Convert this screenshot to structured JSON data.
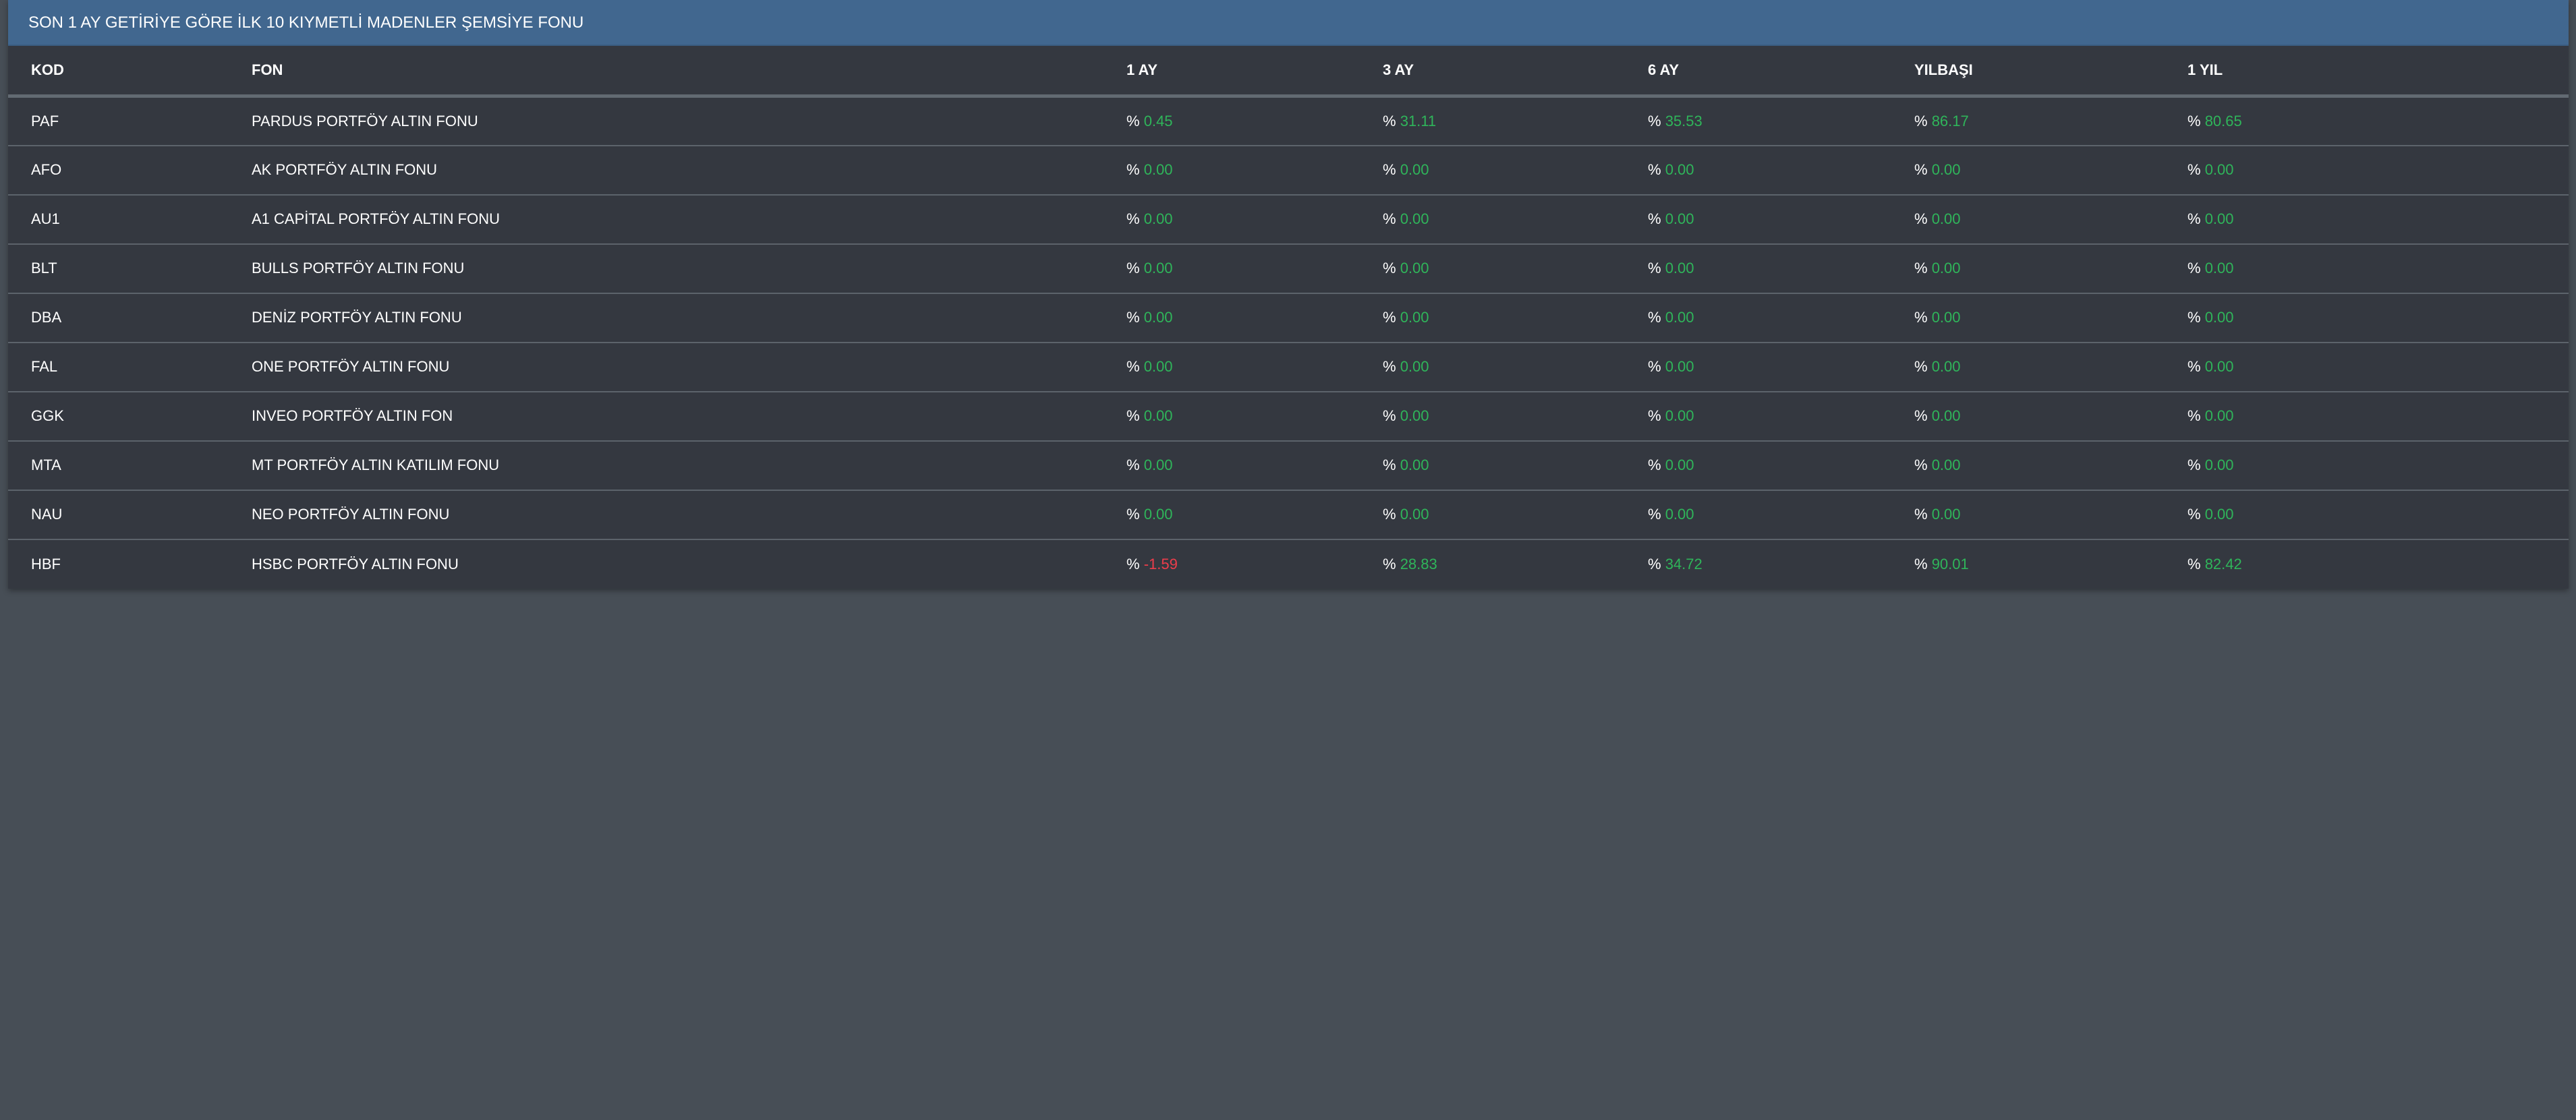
{
  "title": "SON 1 AY GETİRİYE GÖRE İLK 10 KIYMETLİ MADENLER ŞEMSİYE FONU",
  "columns": [
    "KOD",
    "FON",
    "1 AY",
    "3 AY",
    "6 AY",
    "YILBAŞI",
    "1 YIL"
  ],
  "percent_symbol": "%",
  "colors": {
    "positive": "#2fb55a",
    "negative": "#ee3d4b",
    "header": "#41678f",
    "panel": "#343840",
    "page": "#474e56"
  },
  "rows": [
    {
      "kod": "PAF",
      "fon": "PARDUS PORTFÖY ALTIN FONU",
      "values": [
        "0.45",
        "31.11",
        "35.53",
        "86.17",
        "80.65"
      ]
    },
    {
      "kod": "AFO",
      "fon": "AK PORTFÖY ALTIN FONU",
      "values": [
        "0.00",
        "0.00",
        "0.00",
        "0.00",
        "0.00"
      ]
    },
    {
      "kod": "AU1",
      "fon": "A1 CAPİTAL PORTFÖY ALTIN FONU",
      "values": [
        "0.00",
        "0.00",
        "0.00",
        "0.00",
        "0.00"
      ]
    },
    {
      "kod": "BLT",
      "fon": "BULLS PORTFÖY ALTIN FONU",
      "values": [
        "0.00",
        "0.00",
        "0.00",
        "0.00",
        "0.00"
      ]
    },
    {
      "kod": "DBA",
      "fon": "DENİZ PORTFÖY ALTIN FONU",
      "values": [
        "0.00",
        "0.00",
        "0.00",
        "0.00",
        "0.00"
      ]
    },
    {
      "kod": "FAL",
      "fon": "ONE PORTFÖY ALTIN FONU",
      "values": [
        "0.00",
        "0.00",
        "0.00",
        "0.00",
        "0.00"
      ]
    },
    {
      "kod": "GGK",
      "fon": "INVEO PORTFÖY ALTIN FON",
      "values": [
        "0.00",
        "0.00",
        "0.00",
        "0.00",
        "0.00"
      ]
    },
    {
      "kod": "MTA",
      "fon": "MT PORTFÖY ALTIN KATILIM FONU",
      "values": [
        "0.00",
        "0.00",
        "0.00",
        "0.00",
        "0.00"
      ]
    },
    {
      "kod": "NAU",
      "fon": "NEO PORTFÖY ALTIN FONU",
      "values": [
        "0.00",
        "0.00",
        "0.00",
        "0.00",
        "0.00"
      ]
    },
    {
      "kod": "HBF",
      "fon": "HSBC PORTFÖY ALTIN FONU",
      "values": [
        "-1.59",
        "28.83",
        "34.72",
        "90.01",
        "82.42"
      ]
    }
  ]
}
